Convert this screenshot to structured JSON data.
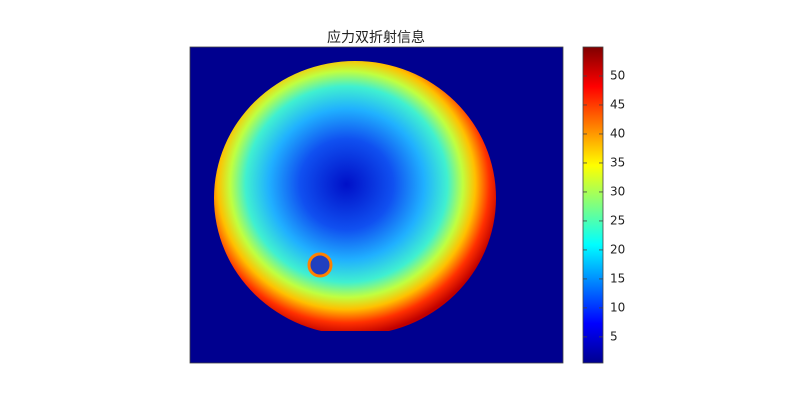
{
  "chart_data": {
    "type": "image",
    "title": "应力双折射信息",
    "colormap": "jet",
    "clim": [
      0.5,
      55
    ],
    "cticks": [
      5,
      10,
      15,
      20,
      25,
      30,
      35,
      40,
      45,
      50
    ]
  }
}
